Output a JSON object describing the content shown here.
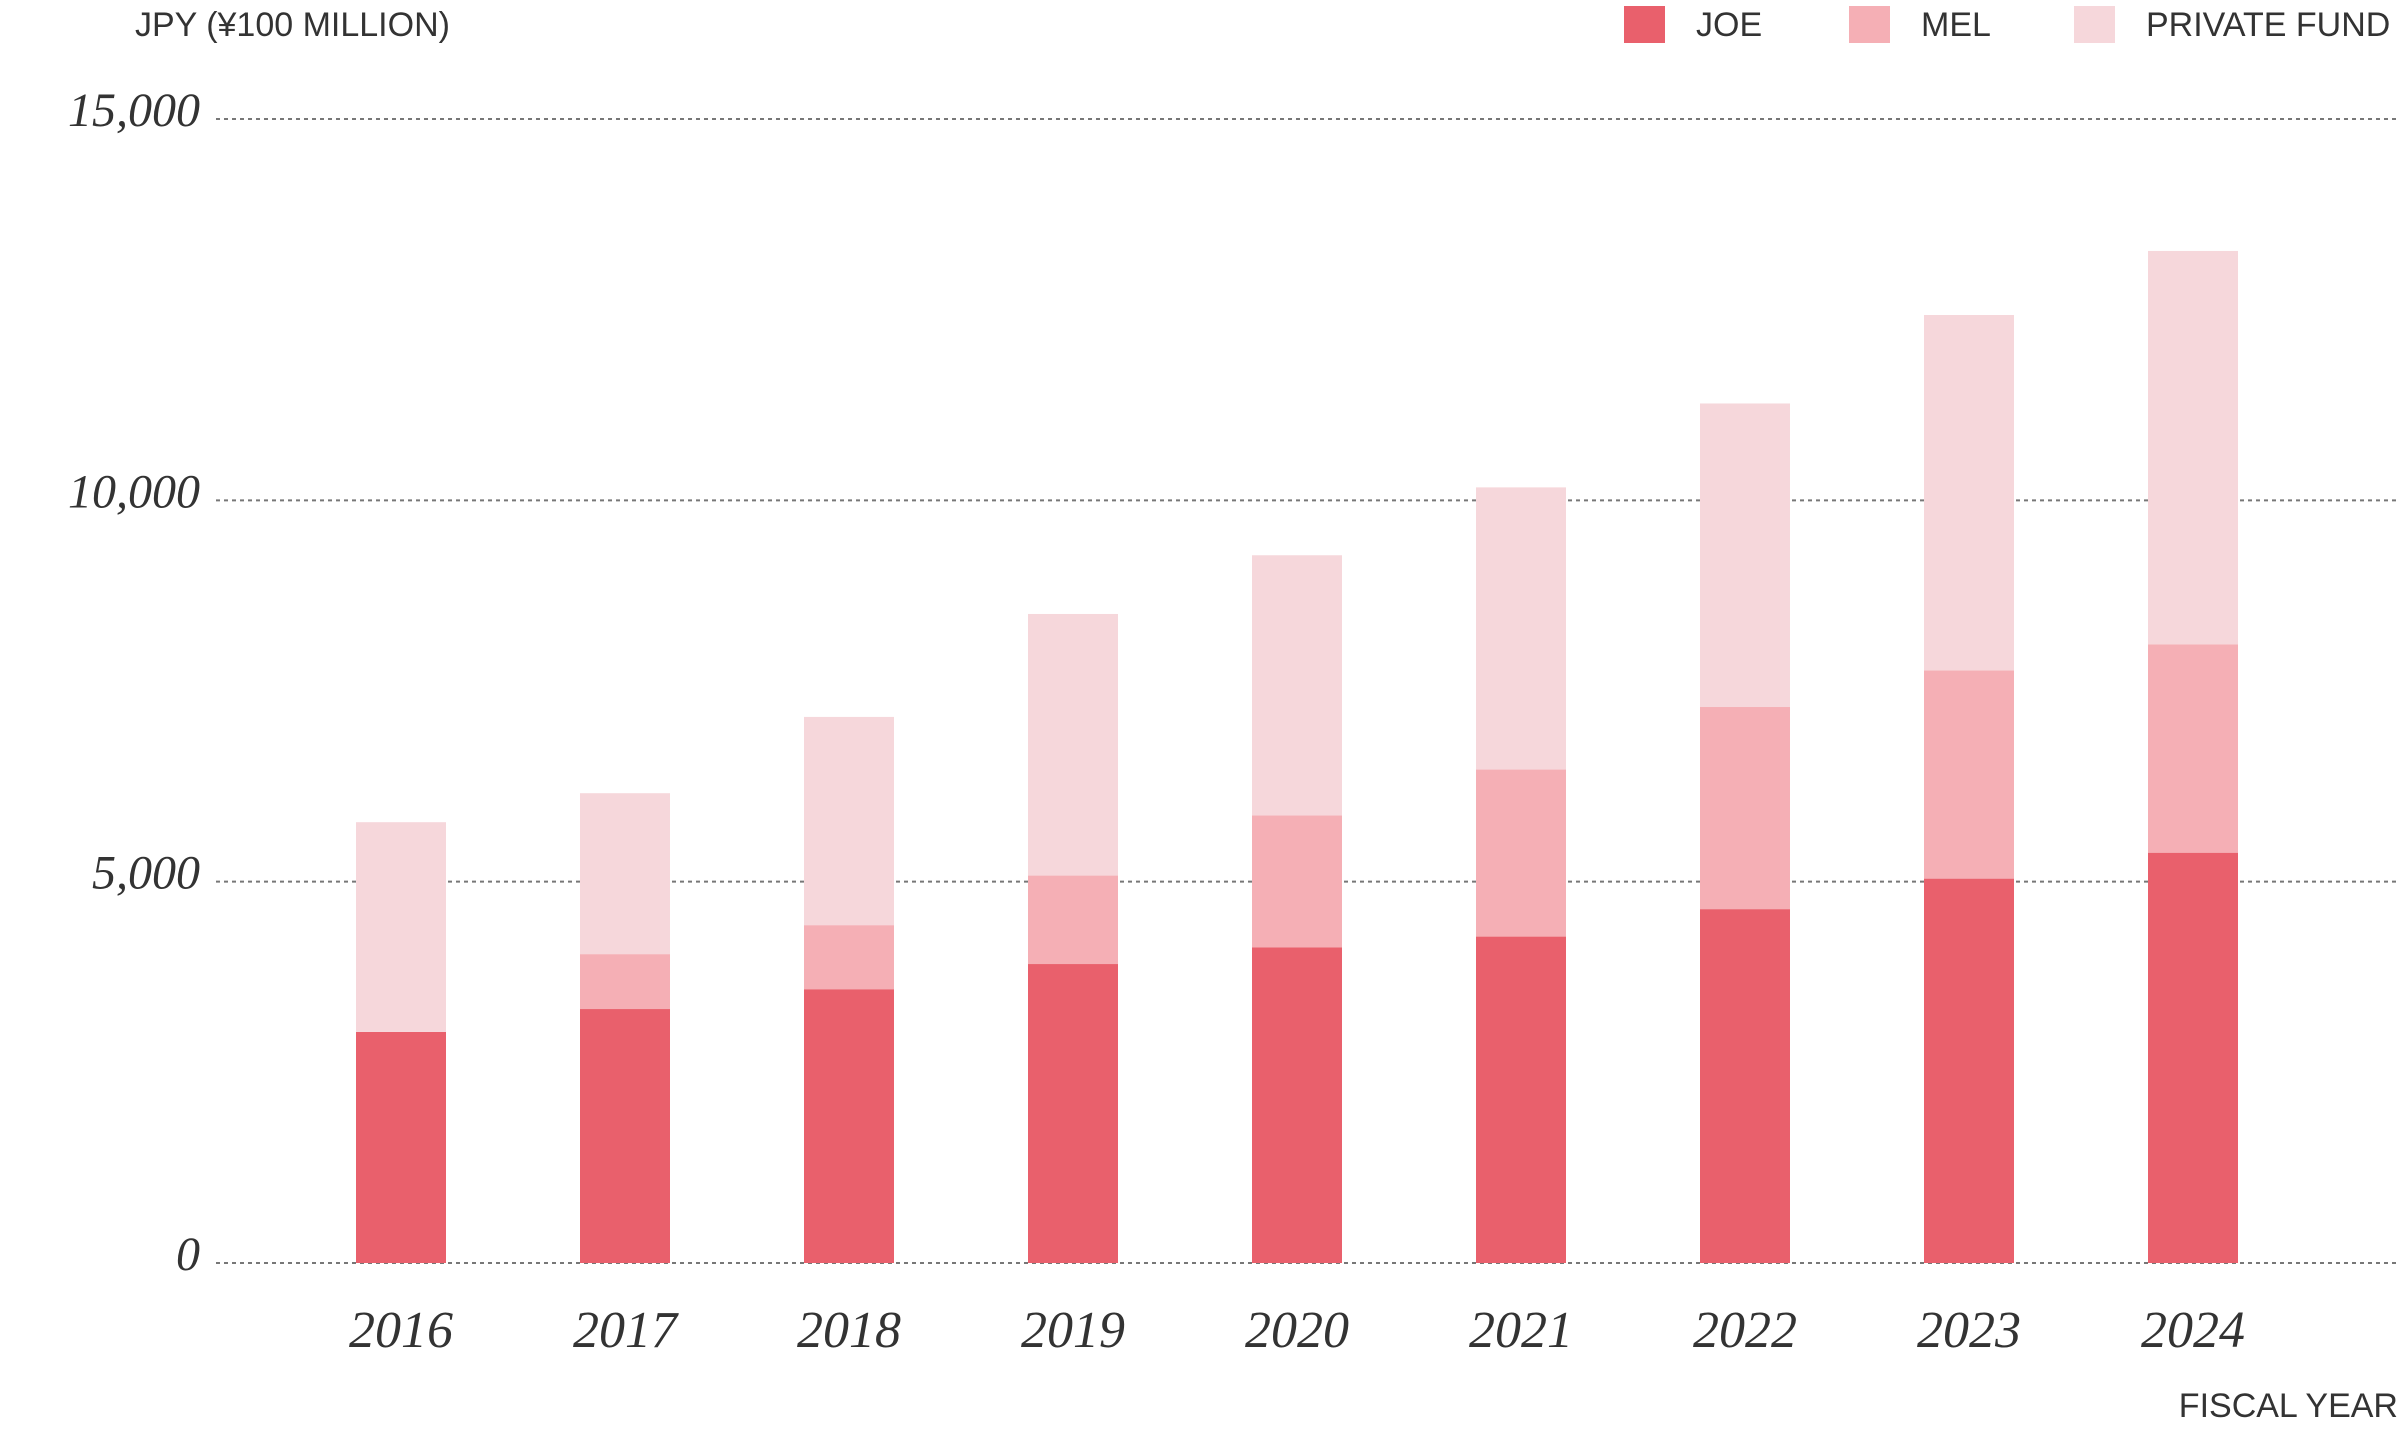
{
  "chart_data": {
    "type": "stacked-bar",
    "y_label": "JPY (¥100 MILLION)",
    "x_label": "FISCAL YEAR",
    "categories": [
      "2016",
      "2017",
      "2018",
      "2019",
      "2020",
      "2021",
      "2022",
      "2023",
      "2024"
    ],
    "series": [
      {
        "name": "JOE",
        "color": "#e9606c",
        "values": [
          3030,
          3330,
          3590,
          3920,
          4140,
          4280,
          4640,
          5040,
          5380
        ]
      },
      {
        "name": "MEL",
        "color": "#f5afb5",
        "values": [
          0,
          720,
          840,
          1160,
          1730,
          2190,
          2650,
          2730,
          2730
        ]
      },
      {
        "name": "PRIVATE FUND",
        "color": "#f6d7db",
        "values": [
          2750,
          2110,
          2730,
          3430,
          3410,
          3700,
          3980,
          4660,
          5160
        ]
      }
    ],
    "ylim": [
      0,
      15000
    ],
    "yticks": [
      0,
      {
        "value": 5000,
        "label": "5,000"
      },
      {
        "value": 10000,
        "label": "10,000"
      },
      {
        "value": 15000,
        "label": "15,000"
      }
    ],
    "grid": true
  }
}
